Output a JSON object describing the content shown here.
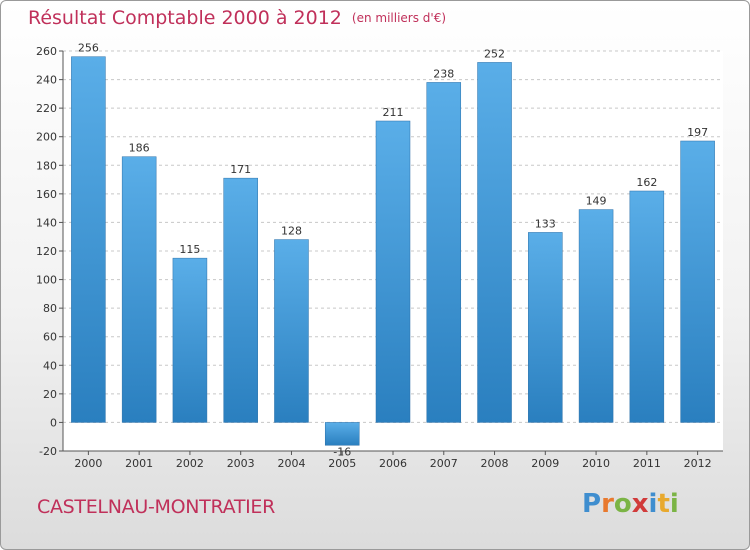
{
  "header": {
    "title": "Résultat Comptable 2000 à 2012",
    "subtitle": "(en milliers d'€)"
  },
  "footer": {
    "commune": "CASTELNAU-MONTRATIER",
    "logo_letters": [
      "P",
      "r",
      "o",
      "x",
      "i",
      "t",
      "i"
    ],
    "logo_colors": [
      "#3f8ecf",
      "#e8792e",
      "#7bb445",
      "#d13b3b",
      "#3f8ecf",
      "#e8a92e",
      "#7bb445"
    ]
  },
  "colors": {
    "bar_top": "#5aaee8",
    "bar_bottom": "#2a7fbf",
    "title": "#c0305a",
    "axis_text": "#333333"
  },
  "chart_data": {
    "type": "bar",
    "title": "Résultat Comptable 2000 à 2012",
    "subtitle": "(en milliers d'€)",
    "categories": [
      "2000",
      "2001",
      "2002",
      "2003",
      "2004",
      "2005",
      "2006",
      "2007",
      "2008",
      "2009",
      "2010",
      "2011",
      "2012"
    ],
    "values": [
      256,
      186,
      115,
      171,
      128,
      -16,
      211,
      238,
      252,
      133,
      149,
      162,
      197
    ],
    "ylim": [
      -20,
      260
    ],
    "yticks": [
      -20,
      0,
      20,
      40,
      60,
      80,
      100,
      120,
      140,
      160,
      180,
      200,
      220,
      240,
      260
    ],
    "grid": true,
    "xlabel": "",
    "ylabel": ""
  }
}
